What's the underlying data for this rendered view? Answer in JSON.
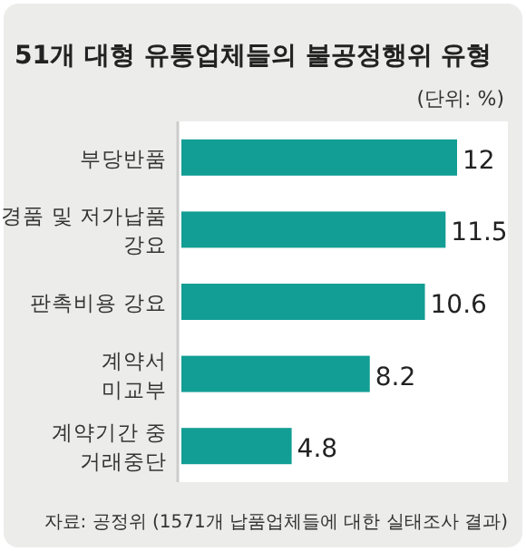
{
  "chart_data": {
    "type": "bar",
    "orientation": "horizontal",
    "title": "51개 대형 유통업체들의 불공정행위 유형",
    "subtitle": "(단위: %)",
    "categories": [
      "부당반품",
      "경품 및 저가납품\n강요",
      "판촉비용 강요",
      "계약서\n미교부",
      "계약기간 중\n거래중단"
    ],
    "values": [
      12,
      11.5,
      10.6,
      8.2,
      4.8
    ],
    "color": "#129e94",
    "data_labels": true,
    "annotations": [
      "자료: 공정위 (1571개 납품업체들에 대한 실태조사 결과)"
    ]
  }
}
